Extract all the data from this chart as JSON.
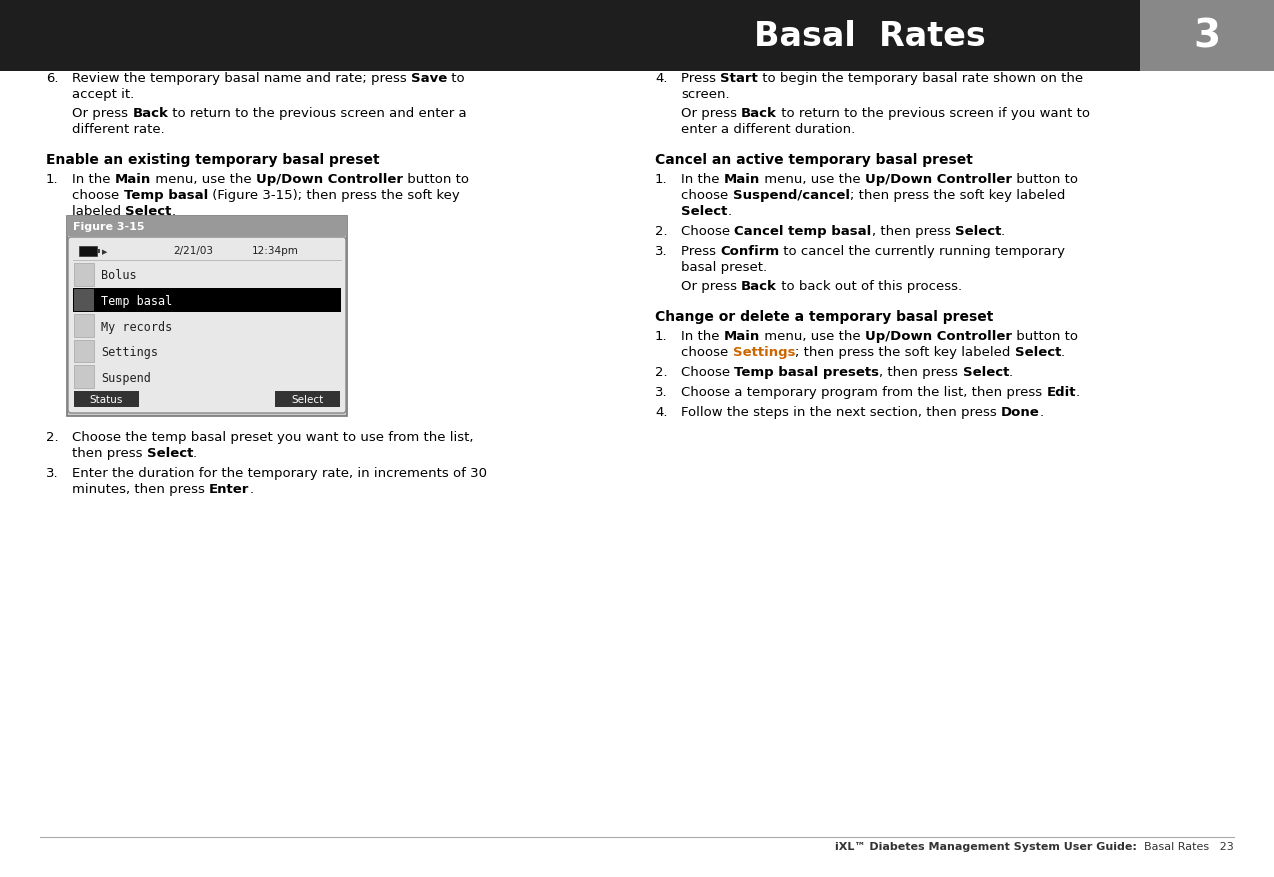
{
  "bg_color": "#ffffff",
  "header_bg": "#1e1e1e",
  "header_tab_bg": "#888888",
  "header_title": "Basal  Rates",
  "header_num": "3",
  "footer_text_bold": "iXL™ Diabetes Management System User Guide:",
  "footer_text_normal": "  Basal Rates   23",
  "link_color": "#cc6600",
  "text_color": "#000000",
  "white": "#ffffff",
  "figure_caption_bg": "#999999",
  "figure_screen_bg": "#e8e8e8",
  "figure_outer_bg": "#cccccc",
  "figure_selected_bg": "#000000",
  "figure_button_bg": "#333333"
}
